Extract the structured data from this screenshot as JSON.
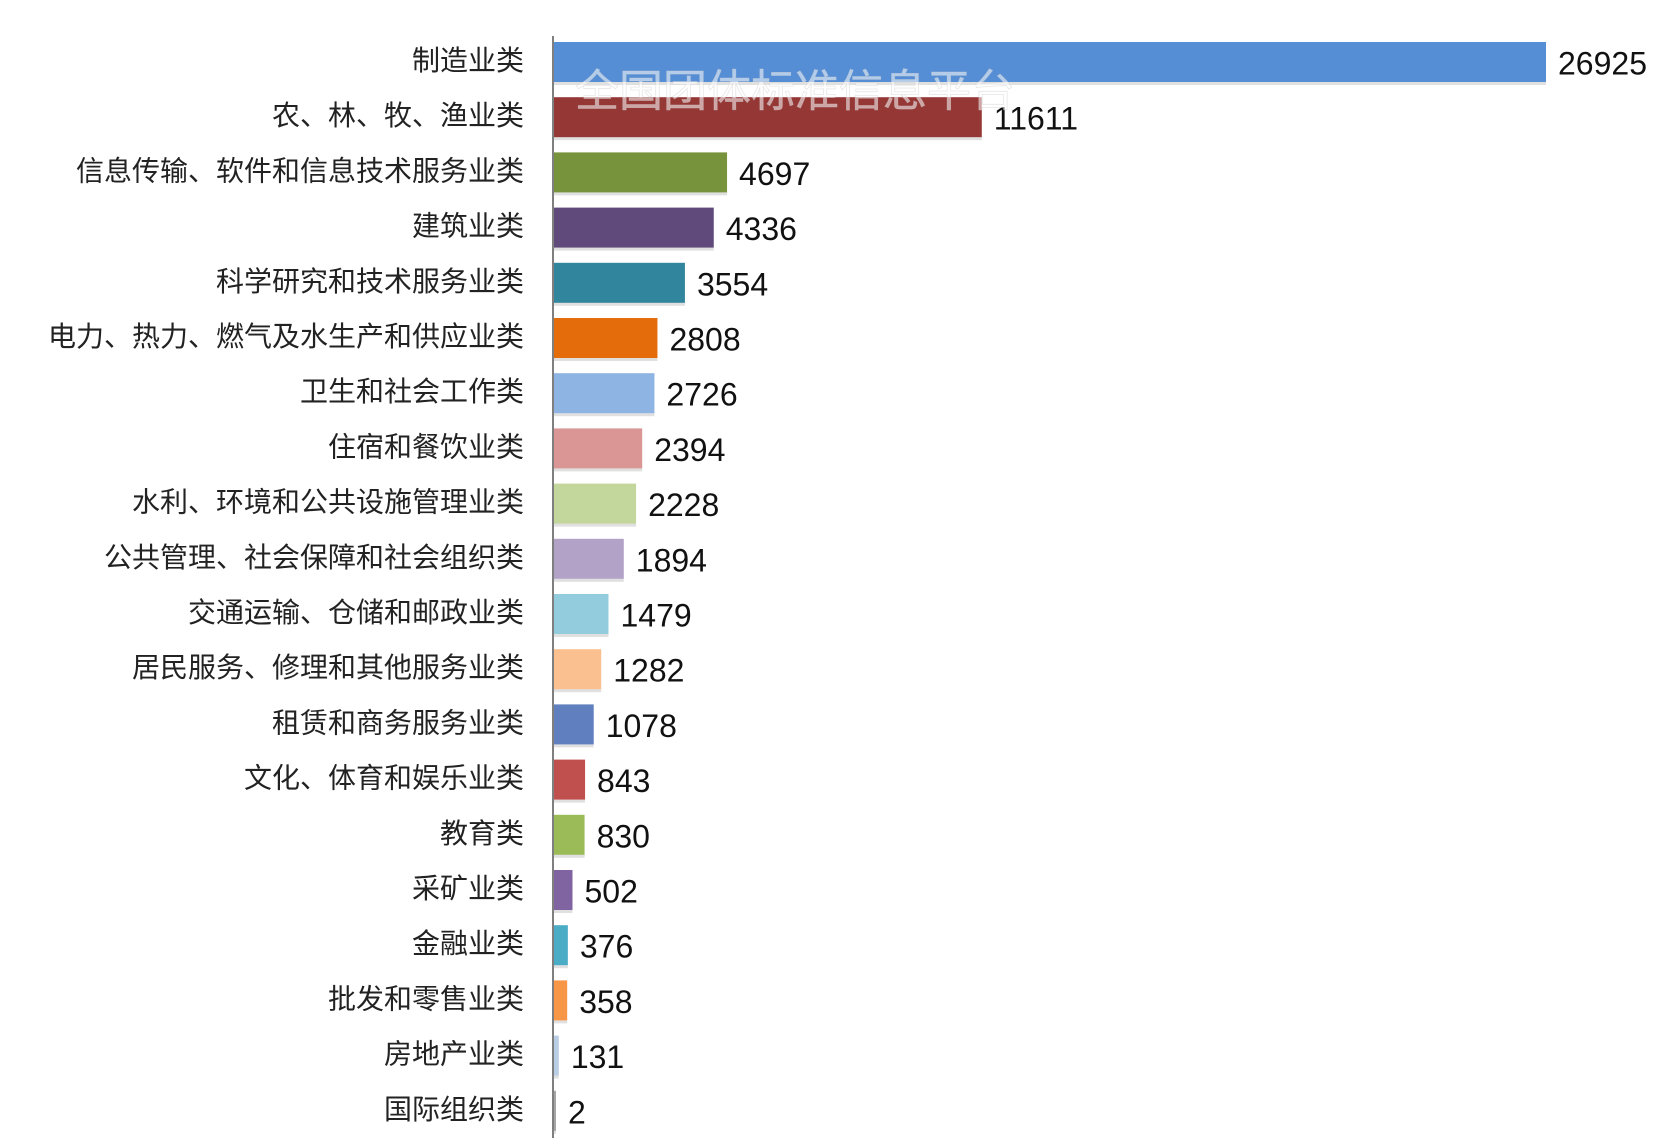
{
  "watermark": "全国团体标准信息平台",
  "chart_data": {
    "type": "bar",
    "orientation": "horizontal",
    "xlim": [
      0,
      26925
    ],
    "grid": false,
    "legend": "none",
    "categories": [
      "制造业类",
      "农、林、牧、渔业类",
      "信息传输、软件和信息技术服务业类",
      "建筑业类",
      "科学研究和技术服务业类",
      "电力、热力、燃气及水生产和供应业类",
      "卫生和社会工作类",
      "住宿和餐饮业类",
      "水利、环境和公共设施管理业类",
      "公共管理、社会保障和社会组织类",
      "交通运输、仓储和邮政业类",
      "居民服务、修理和其他服务业类",
      "租赁和商务服务业类",
      "文化、体育和娱乐业类",
      "教育类",
      "采矿业类",
      "金融业类",
      "批发和零售业类",
      "房地产业类",
      "国际组织类"
    ],
    "values": [
      26925,
      11611,
      4697,
      4336,
      3554,
      2808,
      2726,
      2394,
      2228,
      1894,
      1479,
      1282,
      1078,
      843,
      830,
      502,
      376,
      358,
      131,
      2
    ],
    "colors": [
      "#558ed5",
      "#953735",
      "#77933c",
      "#604a7b",
      "#31859c",
      "#e46c0a",
      "#8eb4e3",
      "#d99694",
      "#c3d69b",
      "#b3a2c7",
      "#93cddd",
      "#fac090",
      "#5f7fbf",
      "#c0504d",
      "#9bbb59",
      "#8064a2",
      "#4bacc6",
      "#f79646",
      "#b9cde5",
      "#a6a6a6"
    ],
    "title": "",
    "xlabel": "",
    "ylabel": ""
  }
}
